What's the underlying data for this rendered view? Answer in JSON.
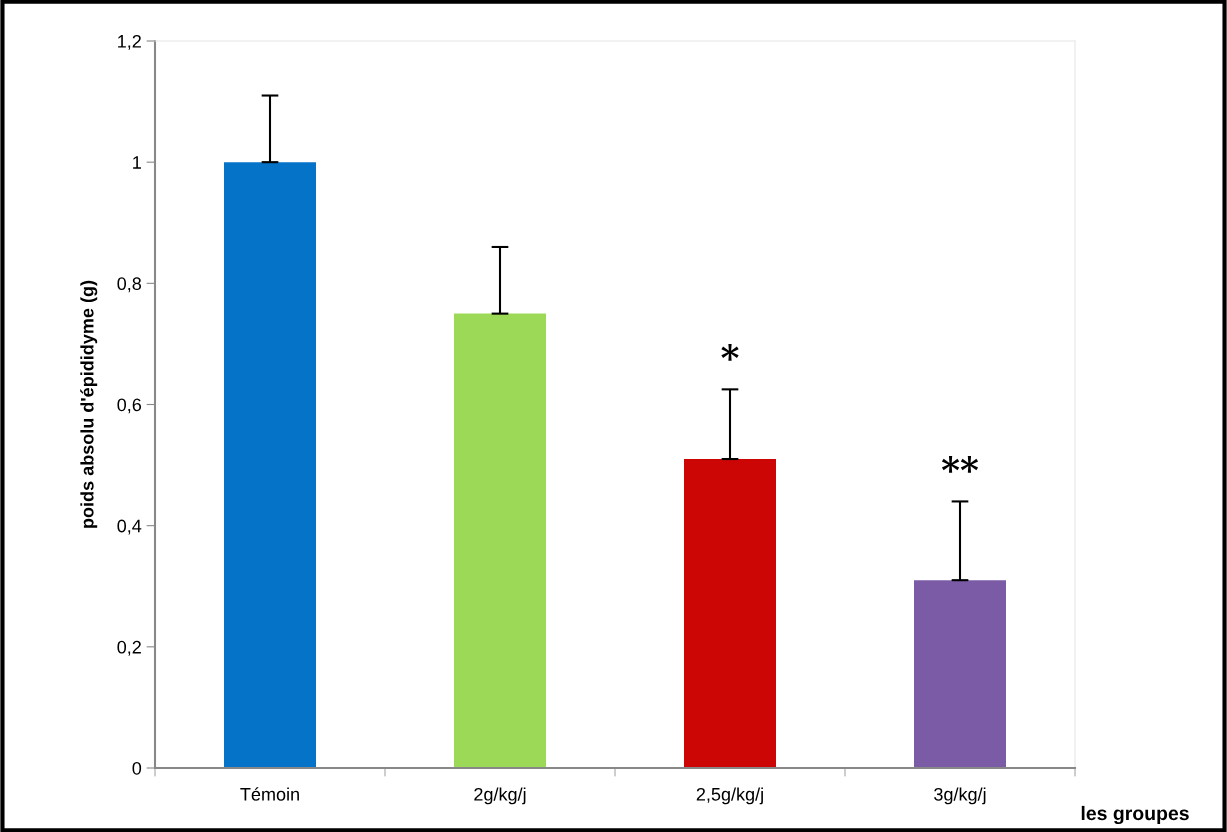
{
  "chart_data": {
    "type": "bar",
    "categories": [
      "Témoin",
      "2g/kg/j",
      "2,5g/kg/j",
      "3g/kg/j"
    ],
    "values": [
      1.0,
      0.75,
      0.51,
      0.31
    ],
    "errors": [
      [
        1.0,
        1.11
      ],
      [
        0.75,
        0.86
      ],
      [
        0.51,
        0.625
      ],
      [
        0.31,
        0.44
      ]
    ],
    "colors": [
      "#0573c8",
      "#9cd957",
      "#cc0505",
      "#7c5ba6"
    ],
    "ylabel": "poids absolu d'épididyme (g)",
    "xlabel": "les groupes",
    "ylim": [
      0,
      1.2
    ],
    "yticks": [
      0,
      {
        "value": 0.2,
        "label": "0,2"
      },
      {
        "value": 0.4,
        "label": "0,4"
      },
      {
        "value": 0.6,
        "label": "0,6"
      },
      {
        "value": 0.8,
        "label": "0,8"
      },
      1,
      {
        "value": 1.2,
        "label": "1,2"
      }
    ],
    "annotations": [
      "*",
      "**"
    ],
    "grid": false,
    "legend": false
  }
}
